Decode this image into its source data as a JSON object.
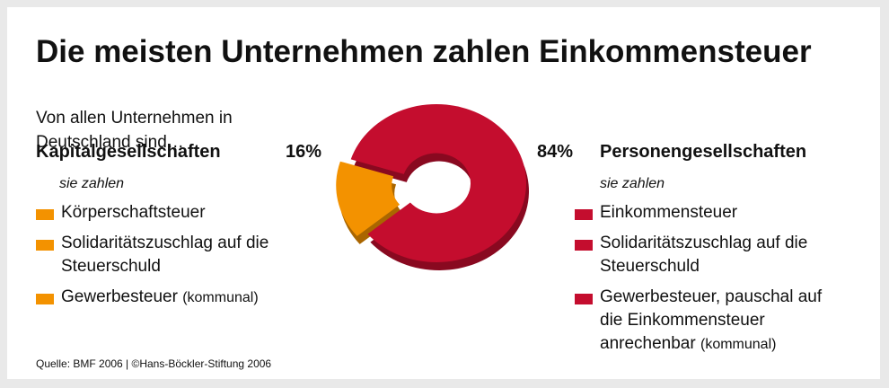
{
  "chart_data": {
    "type": "pie",
    "title": "Die meisten Unternehmen zahlen Einkommensteuer",
    "subtitle": "Von allen Unternehmen in Deutschland sind…",
    "categories": [
      "Kapitalgesellschaften",
      "Personengesellschaften"
    ],
    "values": [
      16,
      84
    ],
    "value_labels": [
      "16%",
      "84%"
    ],
    "colors": [
      "#f39200",
      "#c40d2e"
    ],
    "groups": [
      {
        "intro": "sie zahlen",
        "items": [
          {
            "text": "Körperschaftsteuer"
          },
          {
            "text": "Solidaritätszuschlag auf die Steuerschuld"
          },
          {
            "text": "Gewerbesteuer",
            "note": "(kommunal)"
          }
        ]
      },
      {
        "intro": "sie zahlen",
        "items": [
          {
            "text": "Einkommensteuer"
          },
          {
            "text": "Solidaritätszuschlag auf die Steuerschuld"
          },
          {
            "text": "Gewerbesteuer, pauschal auf die Einkommensteuer anrechenbar",
            "note": "(kommunal)"
          }
        ]
      }
    ],
    "source": "Quelle: BMF 2006 | ©Hans-Böckler-Stiftung 2006"
  }
}
